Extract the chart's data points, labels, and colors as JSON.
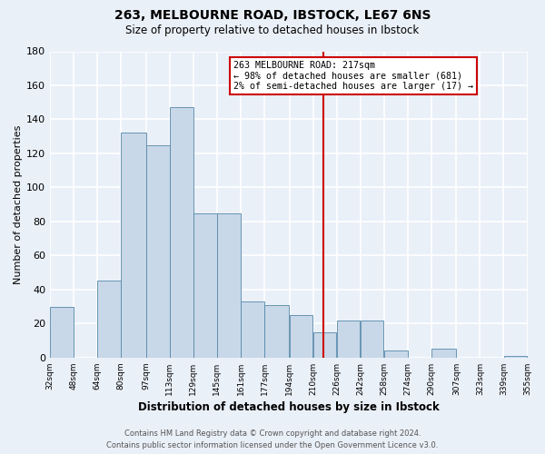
{
  "title": "263, MELBOURNE ROAD, IBSTOCK, LE67 6NS",
  "subtitle": "Size of property relative to detached houses in Ibstock",
  "xlabel": "Distribution of detached houses by size in Ibstock",
  "ylabel": "Number of detached properties",
  "bar_left_edges": [
    32,
    48,
    64,
    80,
    97,
    113,
    129,
    145,
    161,
    177,
    194,
    210,
    226,
    242,
    258,
    274,
    290,
    307,
    323,
    339
  ],
  "bar_widths": [
    16,
    16,
    16,
    17,
    16,
    16,
    16,
    16,
    16,
    17,
    16,
    16,
    16,
    16,
    16,
    16,
    17,
    16,
    16,
    16
  ],
  "bar_heights": [
    30,
    0,
    45,
    132,
    125,
    147,
    85,
    85,
    33,
    31,
    25,
    15,
    22,
    22,
    4,
    0,
    5,
    0,
    0,
    1
  ],
  "bar_color": "#c8d8e8",
  "bar_edge_color": "#5588aa",
  "tick_labels": [
    "32sqm",
    "48sqm",
    "64sqm",
    "80sqm",
    "97sqm",
    "113sqm",
    "129sqm",
    "145sqm",
    "161sqm",
    "177sqm",
    "194sqm",
    "210sqm",
    "226sqm",
    "242sqm",
    "258sqm",
    "274sqm",
    "290sqm",
    "307sqm",
    "323sqm",
    "339sqm",
    "355sqm"
  ],
  "tick_positions": [
    32,
    48,
    64,
    80,
    97,
    113,
    129,
    145,
    161,
    177,
    194,
    210,
    226,
    242,
    258,
    274,
    290,
    307,
    323,
    339,
    355
  ],
  "ylim": [
    0,
    180
  ],
  "xlim": [
    32,
    355
  ],
  "yticks": [
    0,
    20,
    40,
    60,
    80,
    100,
    120,
    140,
    160,
    180
  ],
  "vline_x": 217,
  "vline_color": "#cc0000",
  "annotation_title": "263 MELBOURNE ROAD: 217sqm",
  "annotation_line1": "← 98% of detached houses are smaller (681)",
  "annotation_line2": "2% of semi-detached houses are larger (17) →",
  "annotation_box_color": "#ffffff",
  "annotation_box_edge_color": "#cc0000",
  "footer_line1": "Contains HM Land Registry data © Crown copyright and database right 2024.",
  "footer_line2": "Contains public sector information licensed under the Open Government Licence v3.0.",
  "background_color": "#eaf0f8",
  "grid_color": "#ffffff"
}
